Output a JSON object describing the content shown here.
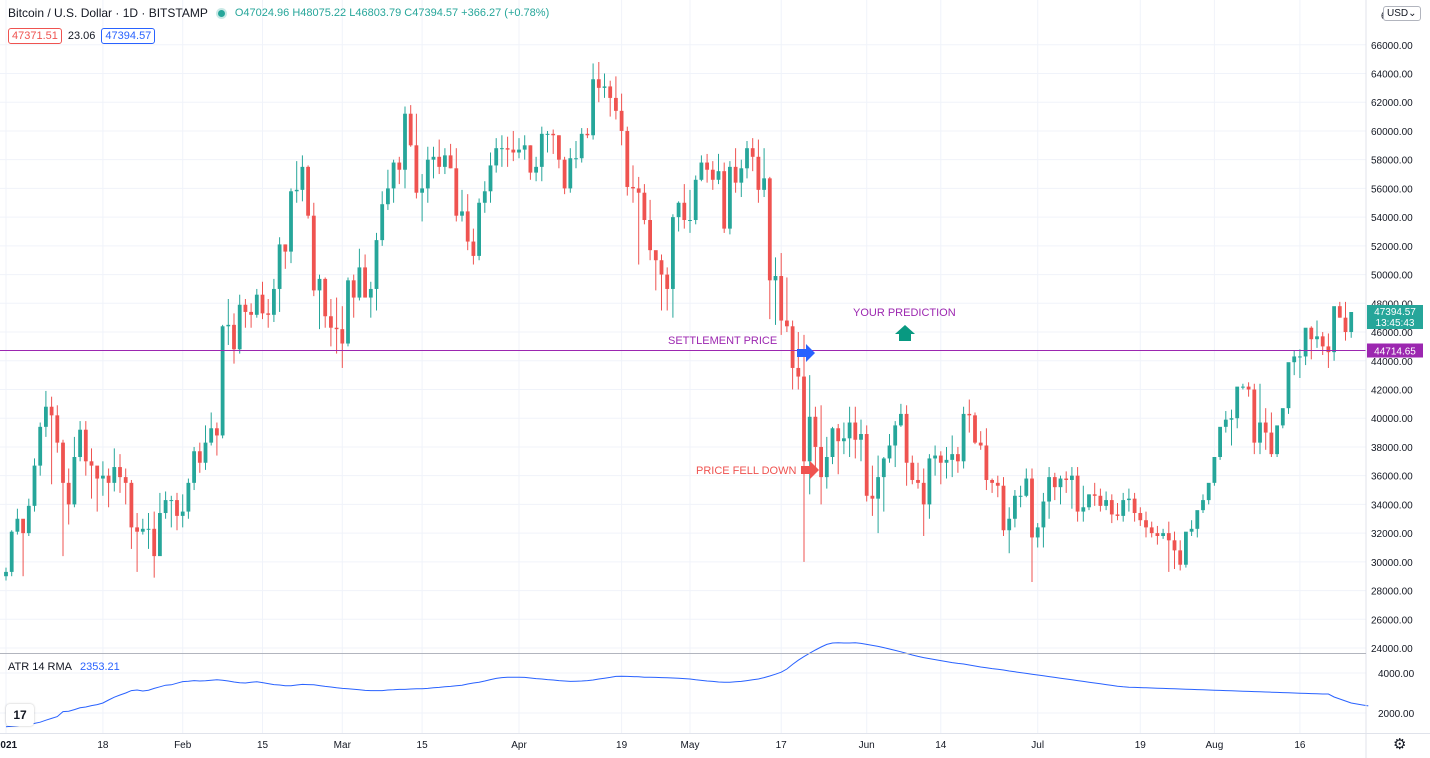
{
  "header": {
    "symbol": "Bitcoin / U.S. Dollar · 1D · BITSTAMP",
    "open": "O47024.96",
    "high": "H48075.22",
    "low": "L46803.79",
    "close": "C47394.57",
    "change": "+366.27 (+0.78%)"
  },
  "quote": {
    "bid": "47371.51",
    "spread": "23.06",
    "ask": "47394.57"
  },
  "currency": "USD",
  "price_axis_top_label": "6",
  "price_tags": {
    "last_price": "47394.57",
    "countdown": "13:45:43",
    "settlement": "44714.65"
  },
  "indicator": {
    "name": "ATR 14 RMA",
    "value": "2353.21"
  },
  "annotations": {
    "your_prediction": "YOUR PREDICTION",
    "settlement_price": "SETTLEMENT PRICE",
    "price_fell_down": "PRICE FELL DOWN"
  },
  "colors": {
    "up": "#26a69a",
    "down": "#ef5350",
    "settlement_line": "#9c27b0",
    "atr_line": "#2962ff",
    "annotation_text": "#9c27b0"
  },
  "chart_data": [
    {
      "type": "candlestick",
      "xlabel": "",
      "ylabel": "",
      "ylim": [
        23000,
        67000
      ],
      "y_ticks": [
        24000,
        26000,
        28000,
        30000,
        32000,
        34000,
        36000,
        38000,
        40000,
        42000,
        44000,
        46000,
        48000,
        50000,
        52000,
        54000,
        56000,
        58000,
        60000,
        62000,
        64000,
        66000
      ],
      "x_tick_labels": [
        "2021",
        "18",
        "Feb",
        "15",
        "Mar",
        "15",
        "Apr",
        "19",
        "May",
        "17",
        "Jun",
        "14",
        "Jul",
        "19",
        "Aug",
        "16"
      ],
      "x_tick_days": [
        0,
        17,
        31,
        45,
        59,
        73,
        90,
        108,
        120,
        136,
        151,
        164,
        181,
        199,
        212,
        227
      ],
      "reference_line": {
        "label": "44714.65",
        "value": 44714.65
      },
      "closes": [
        29300,
        32100,
        33000,
        32000,
        33900,
        36700,
        39400,
        40800,
        40200,
        38300,
        35500,
        34000,
        37300,
        39200,
        37000,
        36700,
        35800,
        36000,
        35500,
        36600,
        35900,
        35500,
        32400,
        32100,
        32300,
        32300,
        30400,
        33400,
        34300,
        34300,
        33200,
        33500,
        35500,
        37700,
        36900,
        38300,
        39300,
        38800,
        46400,
        46500,
        44800,
        47900,
        47400,
        47200,
        48600,
        47300,
        47200,
        49000,
        52100,
        51600,
        55800,
        55900,
        57500,
        54100,
        48900,
        49700,
        47100,
        46300,
        46200,
        45200,
        49600,
        48400,
        50500,
        48400,
        49000,
        52400,
        54900,
        56000,
        57800,
        57300,
        61200,
        59000,
        55700,
        56000,
        58000,
        58200,
        57500,
        58300,
        57400,
        54100,
        54400,
        52300,
        51300,
        55000,
        55800,
        57600,
        58800,
        58800,
        58700,
        58500,
        58700,
        59000,
        57100,
        57500,
        59800,
        59800,
        59700,
        58000,
        56000,
        58100,
        58100,
        59800,
        59700,
        63600,
        63000,
        63100,
        62300,
        61400,
        60000,
        56100,
        56000,
        55700,
        53800,
        51700,
        51000,
        50000,
        49000,
        54000,
        55000,
        53800,
        53800,
        56600,
        57800,
        57300,
        56600,
        57200,
        53200,
        57500,
        56400,
        57400,
        58800,
        58200,
        55900,
        56700,
        49600,
        49900,
        46800,
        46400,
        43500,
        42900,
        37000,
        40100,
        38000,
        35900,
        37300,
        39300,
        38400,
        38600,
        39700,
        38500,
        38900,
        34600,
        34400,
        35900,
        37200,
        38100,
        39500,
        40300,
        36900,
        35700,
        35500,
        34000,
        37200,
        37400,
        36900,
        37100,
        37500,
        37000,
        40300,
        40200,
        38300,
        38100,
        35700,
        35500,
        35300,
        32200,
        33000,
        34600,
        34600,
        35800,
        31700,
        32400,
        34200,
        35900,
        35200,
        35800,
        35700,
        36000,
        33500,
        33800,
        34700,
        34600,
        33900,
        34300,
        33300,
        33200,
        34300,
        34400,
        33400,
        32900,
        32400,
        32000,
        31800,
        32000,
        31500,
        30800,
        29800,
        32100,
        32300,
        33600,
        34300,
        35500,
        37300,
        39400,
        39900,
        40000,
        42200,
        42200,
        42000,
        38300,
        39700,
        39000,
        37500,
        39500,
        40700,
        43900,
        44300,
        44300,
        46300,
        45500,
        45700,
        45000,
        44600,
        47800,
        47000,
        46000,
        47394.57
      ],
      "highs": [
        29600,
        32200,
        33700,
        32500,
        34400,
        37200,
        39700,
        41900,
        41500,
        40900,
        38500,
        36500,
        38700,
        39800,
        39800,
        37900,
        36600,
        37000,
        36500,
        37900,
        37500,
        36500,
        35700,
        33400,
        33000,
        33400,
        33500,
        34800,
        34900,
        34600,
        34800,
        34700,
        35800,
        38000,
        38300,
        39500,
        40400,
        39700,
        46500,
        48300,
        47300,
        48600,
        48300,
        48000,
        49000,
        49500,
        48300,
        49700,
        52600,
        52100,
        56000,
        57900,
        58300,
        57600,
        55000,
        50000,
        49800,
        48300,
        48400,
        47800,
        49800,
        50000,
        51800,
        51400,
        49500,
        52900,
        55800,
        57300,
        58000,
        58200,
        61700,
        61800,
        61200,
        57000,
        58900,
        58900,
        59400,
        58800,
        59100,
        58800,
        55900,
        55600,
        53200,
        55300,
        56500,
        58500,
        59500,
        59700,
        59600,
        60000,
        59500,
        59700,
        59000,
        58200,
        60300,
        60000,
        60100,
        59700,
        58200,
        58800,
        59300,
        60200,
        60200,
        64700,
        64800,
        64000,
        63500,
        63800,
        62600,
        60300,
        57600,
        56800,
        56300,
        55200,
        51500,
        51400,
        50500,
        54200,
        55100,
        56300,
        55900,
        56900,
        58300,
        58400,
        57900,
        58400,
        57800,
        57900,
        58800,
        58000,
        59300,
        59500,
        59400,
        58800,
        56800,
        51200,
        51500,
        49800,
        46800,
        46000,
        45800,
        43000,
        40800,
        40900,
        38700,
        39400,
        39600,
        39700,
        40800,
        40800,
        39900,
        39500,
        36700,
        37400,
        37300,
        38900,
        39800,
        41000,
        40900,
        37400,
        36900,
        36500,
        37500,
        38100,
        37700,
        38000,
        38800,
        38000,
        40800,
        41300,
        40400,
        39100,
        39300,
        35800,
        36000,
        35900,
        33800,
        35000,
        35300,
        36500,
        36500,
        32700,
        34800,
        36600,
        36200,
        36000,
        36300,
        36600,
        36600,
        35300,
        34700,
        35500,
        35100,
        34900,
        34700,
        34100,
        34800,
        35100,
        34800,
        33800,
        33500,
        32800,
        32500,
        32300,
        32800,
        32100,
        31500,
        30500,
        32900,
        32900,
        34700,
        34900,
        35800,
        37500,
        40500,
        40600,
        40600,
        42400,
        42500,
        42400,
        42400,
        40700,
        40400,
        39000,
        39800,
        41300,
        44700,
        44800,
        46100,
        46400,
        46800,
        46000,
        45900,
        45700,
        48100,
        48100,
        47200,
        48075.22
      ],
      "lows": [
        28700,
        29000,
        31900,
        29000,
        31800,
        33500,
        36000,
        38700,
        35400,
        37600,
        30400,
        32600,
        33800,
        37000,
        36000,
        34400,
        33500,
        34600,
        33800,
        34900,
        34800,
        34000,
        30900,
        29300,
        31900,
        30900,
        28900,
        31000,
        33000,
        32400,
        32200,
        32400,
        33000,
        35000,
        36200,
        36400,
        38100,
        37400,
        38600,
        45100,
        43800,
        44500,
        46300,
        46300,
        47000,
        46900,
        46300,
        46700,
        47400,
        50400,
        50800,
        55000,
        55100,
        53900,
        48500,
        46200,
        46300,
        45000,
        44500,
        43500,
        45000,
        47000,
        48200,
        48400,
        47000,
        47500,
        52000,
        54500,
        55000,
        56300,
        56000,
        58900,
        55300,
        53700,
        55000,
        56700,
        57000,
        57000,
        57400,
        53700,
        53700,
        51700,
        50700,
        51000,
        54300,
        55000,
        57100,
        57500,
        57500,
        57900,
        58100,
        58000,
        56600,
        56500,
        56500,
        58500,
        58400,
        57400,
        55600,
        55700,
        57400,
        57800,
        59500,
        59400,
        62000,
        62300,
        61000,
        60800,
        59000,
        55500,
        55000,
        50700,
        53500,
        51000,
        48900,
        47500,
        47500,
        47000,
        53000,
        53200,
        52900,
        53500,
        56500,
        56400,
        55900,
        56300,
        52900,
        52800,
        55700,
        55400,
        56700,
        57200,
        55000,
        55400,
        46900,
        46500,
        45800,
        46000,
        42000,
        42000,
        30000,
        34700,
        36300,
        34000,
        35100,
        36800,
        36100,
        37500,
        37300,
        37200,
        37000,
        34200,
        33200,
        32000,
        33500,
        36900,
        36600,
        39400,
        35300,
        35400,
        35100,
        31800,
        33000,
        36000,
        35400,
        35800,
        35900,
        36200,
        36500,
        39000,
        38200,
        37800,
        35000,
        34800,
        34500,
        31800,
        30600,
        32400,
        33800,
        34500,
        28600,
        31000,
        31000,
        33000,
        34300,
        34000,
        34800,
        33700,
        32800,
        32800,
        33600,
        33900,
        33500,
        33600,
        32700,
        32900,
        32800,
        33500,
        32800,
        32500,
        31700,
        31700,
        31200,
        31600,
        29300,
        29500,
        29400,
        29600,
        31800,
        31700,
        33400,
        34000,
        35300,
        37100,
        39000,
        38100,
        39300,
        42000,
        41500,
        37500,
        37500,
        37800,
        37300,
        37300,
        39300,
        40300,
        43000,
        42800,
        43700,
        44100,
        44900,
        44400,
        43500,
        44000,
        47000,
        45400,
        45600,
        46803.79
      ],
      "atr_ylim": [
        1000,
        5000
      ],
      "atr_y_ticks": [
        2000,
        4000
      ],
      "atr": [
        1310,
        1340,
        1360,
        1400,
        1440,
        1480,
        1540,
        1640,
        1730,
        1820,
        2070,
        2090,
        2170,
        2260,
        2300,
        2370,
        2420,
        2500,
        2650,
        2790,
        2900,
        3000,
        3120,
        3150,
        3100,
        3140,
        3230,
        3310,
        3390,
        3410,
        3490,
        3570,
        3590,
        3620,
        3600,
        3610,
        3640,
        3660,
        3640,
        3600,
        3550,
        3510,
        3500,
        3540,
        3560,
        3520,
        3470,
        3420,
        3400,
        3360,
        3360,
        3400,
        3430,
        3420,
        3410,
        3370,
        3330,
        3300,
        3260,
        3230,
        3210,
        3190,
        3160,
        3130,
        3120,
        3120,
        3120,
        3150,
        3160,
        3180,
        3180,
        3200,
        3210,
        3210,
        3230,
        3260,
        3280,
        3310,
        3330,
        3360,
        3390,
        3450,
        3500,
        3540,
        3600,
        3670,
        3730,
        3770,
        3790,
        3790,
        3790,
        3780,
        3750,
        3720,
        3700,
        3670,
        3650,
        3620,
        3600,
        3580,
        3590,
        3600,
        3620,
        3650,
        3700,
        3740,
        3780,
        3830,
        3840,
        3830,
        3820,
        3810,
        3790,
        3790,
        3780,
        3770,
        3760,
        3750,
        3740,
        3720,
        3700,
        3660,
        3630,
        3600,
        3580,
        3550,
        3540,
        3540,
        3560,
        3580,
        3620,
        3660,
        3700,
        3770,
        3850,
        3940,
        4040,
        4200,
        4430,
        4640,
        4820,
        4990,
        5150,
        5300,
        5430,
        5500,
        5510,
        5500,
        5500,
        5510,
        5480,
        5430,
        5380,
        5330,
        5270,
        5200,
        5130,
        5060,
        4980,
        4900,
        4830,
        4770,
        4720,
        4670,
        4620,
        4570,
        4520,
        4480,
        4450,
        4400,
        4350,
        4300,
        4260,
        4220,
        4190,
        4150,
        4100,
        4060,
        4020,
        3980,
        3940,
        3900,
        3860,
        3820,
        3780,
        3740,
        3700,
        3660,
        3620,
        3580,
        3540,
        3500,
        3460,
        3420,
        3380,
        3340,
        3310,
        3290,
        3280,
        3270,
        3260,
        3250,
        3240,
        3230,
        3220,
        3210,
        3200,
        3190,
        3180,
        3170,
        3160,
        3150,
        3140,
        3130,
        3120,
        3110,
        3100,
        3090,
        3080,
        3070,
        3060,
        3050,
        3040,
        3030,
        3020,
        3010,
        3000,
        2990,
        2980,
        2970,
        2960,
        2950,
        2950,
        2800,
        2700,
        2600,
        2500,
        2450,
        2400,
        2353.21
      ]
    }
  ]
}
